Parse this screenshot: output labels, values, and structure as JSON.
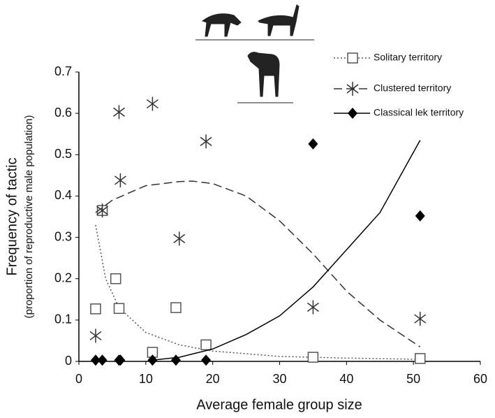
{
  "chart_data": {
    "type": "scatter",
    "xlabel": "Average female group size",
    "ylabel": [
      "Frequency of tactic",
      "(proportion of reproductive male population)"
    ],
    "xlim": [
      0,
      60
    ],
    "xticks": [
      0,
      10,
      20,
      30,
      40,
      50,
      60
    ],
    "ylim": [
      0,
      0.7
    ],
    "yticks": [
      0,
      0.1,
      0.2,
      0.3,
      0.4,
      0.5,
      0.6,
      0.7
    ],
    "grid": false,
    "legend": "upper right",
    "series": [
      {
        "name": "Solitary territory",
        "color": "#555555",
        "marker": "square",
        "linestyle": "dotted",
        "x": [
          2.5,
          3.5,
          5.5,
          6,
          11,
          14.5,
          19,
          35,
          51
        ],
        "values": [
          0.127,
          0.365,
          0.2,
          0.128,
          0.022,
          0.13,
          0.04,
          0.01,
          0.007
        ],
        "fit_x": [
          2.5,
          4,
          6,
          10,
          15,
          20,
          30,
          40,
          51
        ],
        "fit_y": [
          0.33,
          0.2,
          0.13,
          0.07,
          0.04,
          0.025,
          0.012,
          0.008,
          0.005
        ]
      },
      {
        "name": "Clustered territory",
        "color": "#333333",
        "marker": "asterisk",
        "linestyle": "dashed",
        "x": [
          2.5,
          3.5,
          6,
          6.2,
          11,
          15,
          19,
          35,
          51
        ],
        "values": [
          0.062,
          0.365,
          0.603,
          0.438,
          0.623,
          0.297,
          0.532,
          0.131,
          0.103
        ],
        "fit_x": [
          2.5,
          5,
          10,
          15,
          17,
          20,
          25,
          30,
          35,
          40,
          45,
          51
        ],
        "fit_y": [
          0.36,
          0.39,
          0.425,
          0.435,
          0.436,
          0.43,
          0.4,
          0.34,
          0.26,
          0.17,
          0.1,
          0.035
        ]
      },
      {
        "name": "Classical lek territory",
        "color": "#000000",
        "marker": "diamond",
        "linestyle": "solid",
        "x": [
          2.5,
          3.5,
          6,
          6.2,
          11,
          14.5,
          19,
          35,
          51
        ],
        "values": [
          0.003,
          0.003,
          0.003,
          0.003,
          0.003,
          0.003,
          0.003,
          0.526,
          0.352
        ],
        "fit_x": [
          11,
          15,
          20,
          25,
          30,
          35,
          40,
          45,
          51
        ],
        "fit_y": [
          0.003,
          0.01,
          0.03,
          0.065,
          0.11,
          0.18,
          0.27,
          0.36,
          0.535
        ]
      }
    ]
  }
}
